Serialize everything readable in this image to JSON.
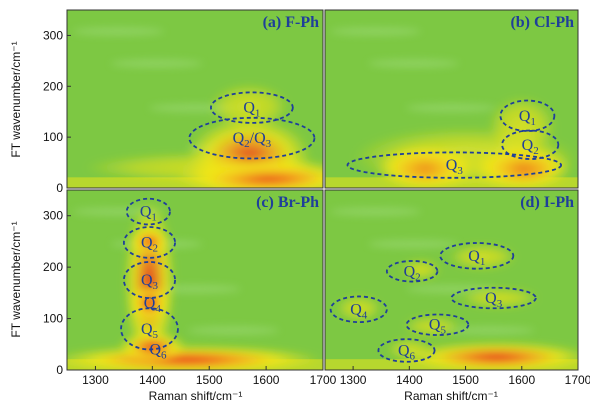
{
  "chart_data": {
    "type": "heatmap",
    "xlabel": "Raman shift/cm⁻¹",
    "ylabel": "FT wavenumber/cm⁻¹",
    "xlim": [
      1250,
      1700
    ],
    "ylim": [
      0,
      350
    ],
    "xticks": [
      1300,
      1400,
      1500,
      1600,
      1700
    ],
    "yticks": [
      0,
      100,
      200,
      300
    ],
    "xtick_labels_top": [
      "1300",
      "1400",
      "1500",
      "1600",
      "1700"
    ],
    "xtick_labels_bottom_left": [
      "1300",
      "1400",
      "1500",
      "1600",
      "1700"
    ],
    "xtick_labels_bottom_right": [
      "1300",
      "1400",
      "1500",
      "1600",
      "1700"
    ],
    "ytick_labels": [
      "0",
      "100",
      "200",
      "300"
    ],
    "colors": {
      "low": "#3ab7e8",
      "mid": "#7dc843",
      "midhigh": "#f2e619",
      "high": "#f39a1d",
      "peak": "#e8221b"
    },
    "panels": [
      {
        "title": "(a) F-Ph",
        "position": "top-left",
        "show_xticks": false,
        "show_yticks": true,
        "blobs": [
          {
            "x": 1570,
            "y": 60,
            "rx": 110,
            "ry": 80,
            "level": 0.85
          },
          {
            "x": 1600,
            "y": 20,
            "rx": 160,
            "ry": 35,
            "level": 1.0
          },
          {
            "x": 1570,
            "y": 160,
            "rx": 70,
            "ry": 45,
            "level": 0.55
          },
          {
            "x": 1500,
            "y": 40,
            "rx": 220,
            "ry": 30,
            "level": 0.5
          }
        ],
        "regions": [
          {
            "label": "Q",
            "sub": "1",
            "cx": 1575,
            "cy": 158,
            "rx": 72,
            "ry": 30
          },
          {
            "label": "Q",
            "sub": "2",
            "label2": "/Q",
            "sub2": "3",
            "cx": 1575,
            "cy": 98,
            "rx": 110,
            "ry": 40
          }
        ]
      },
      {
        "title": "(b) Cl-Ph",
        "position": "top-right",
        "show_xticks": false,
        "show_yticks": false,
        "blobs": [
          {
            "x": 1430,
            "y": 40,
            "rx": 90,
            "ry": 45,
            "level": 1.0
          },
          {
            "x": 1600,
            "y": 40,
            "rx": 90,
            "ry": 45,
            "level": 1.0
          },
          {
            "x": 1600,
            "y": 120,
            "rx": 60,
            "ry": 60,
            "level": 0.6
          },
          {
            "x": 1500,
            "y": 60,
            "rx": 200,
            "ry": 60,
            "level": 0.55
          }
        ],
        "regions": [
          {
            "label": "Q",
            "sub": "1",
            "cx": 1610,
            "cy": 142,
            "rx": 48,
            "ry": 30
          },
          {
            "label": "Q",
            "sub": "2",
            "cx": 1615,
            "cy": 85,
            "rx": 50,
            "ry": 28
          },
          {
            "label": "Q",
            "sub": "3",
            "cx": 1480,
            "cy": 45,
            "rx": 190,
            "ry": 25
          }
        ]
      },
      {
        "title": "(c) Br-Ph",
        "position": "bottom-left",
        "show_xticks": true,
        "show_yticks": true,
        "blobs": [
          {
            "x": 1395,
            "y": 170,
            "rx": 45,
            "ry": 160,
            "level": 0.85
          },
          {
            "x": 1395,
            "y": 130,
            "rx": 35,
            "ry": 35,
            "level": 1.0
          },
          {
            "x": 1395,
            "y": 250,
            "rx": 35,
            "ry": 25,
            "level": 0.95
          },
          {
            "x": 1460,
            "y": 20,
            "rx": 240,
            "ry": 28,
            "level": 1.0
          },
          {
            "x": 1400,
            "y": 45,
            "rx": 60,
            "ry": 30,
            "level": 0.9
          }
        ],
        "regions": [
          {
            "label": "Q",
            "sub": "1",
            "cx": 1393,
            "cy": 308,
            "rx": 38,
            "ry": 25
          },
          {
            "label": "Q",
            "sub": "2",
            "cx": 1395,
            "cy": 248,
            "rx": 45,
            "ry": 30
          },
          {
            "label": "Q",
            "sub": "3",
            "cx": 1395,
            "cy": 175,
            "rx": 45,
            "ry": 35
          },
          {
            "label": "Q",
            "sub": "4",
            "cx": 1400,
            "cy": 130,
            "rx": 45,
            "ry": 0
          },
          {
            "label": "Q",
            "sub": "5",
            "cx": 1395,
            "cy": 80,
            "rx": 50,
            "ry": 40
          },
          {
            "label": "Q",
            "sub": "6",
            "cx": 1410,
            "cy": 40,
            "rx": 0,
            "ry": 0
          }
        ]
      },
      {
        "title": "(d) I-Ph",
        "position": "bottom-right",
        "show_xticks": true,
        "show_yticks": false,
        "blobs": [
          {
            "x": 1555,
            "y": 25,
            "rx": 170,
            "ry": 30,
            "level": 0.95
          },
          {
            "x": 1530,
            "y": 220,
            "rx": 60,
            "ry": 25,
            "level": 0.55
          },
          {
            "x": 1420,
            "y": 195,
            "rx": 35,
            "ry": 20,
            "level": 0.55
          },
          {
            "x": 1560,
            "y": 140,
            "rx": 70,
            "ry": 20,
            "level": 0.5
          },
          {
            "x": 1310,
            "y": 120,
            "rx": 40,
            "ry": 25,
            "level": 0.5
          },
          {
            "x": 1440,
            "y": 85,
            "rx": 50,
            "ry": 20,
            "level": 0.45
          },
          {
            "x": 1400,
            "y": 40,
            "rx": 40,
            "ry": 20,
            "level": 0.5
          }
        ],
        "regions": [
          {
            "label": "Q",
            "sub": "1",
            "cx": 1520,
            "cy": 222,
            "rx": 65,
            "ry": 25
          },
          {
            "label": "Q",
            "sub": "2",
            "cx": 1405,
            "cy": 192,
            "rx": 45,
            "ry": 20
          },
          {
            "label": "Q",
            "sub": "3",
            "cx": 1550,
            "cy": 140,
            "rx": 75,
            "ry": 20
          },
          {
            "label": "Q",
            "sub": "4",
            "cx": 1310,
            "cy": 118,
            "rx": 50,
            "ry": 25
          },
          {
            "label": "Q",
            "sub": "5",
            "cx": 1450,
            "cy": 88,
            "rx": 55,
            "ry": 20
          },
          {
            "label": "Q",
            "sub": "6",
            "cx": 1395,
            "cy": 38,
            "rx": 50,
            "ry": 22
          }
        ]
      }
    ]
  }
}
